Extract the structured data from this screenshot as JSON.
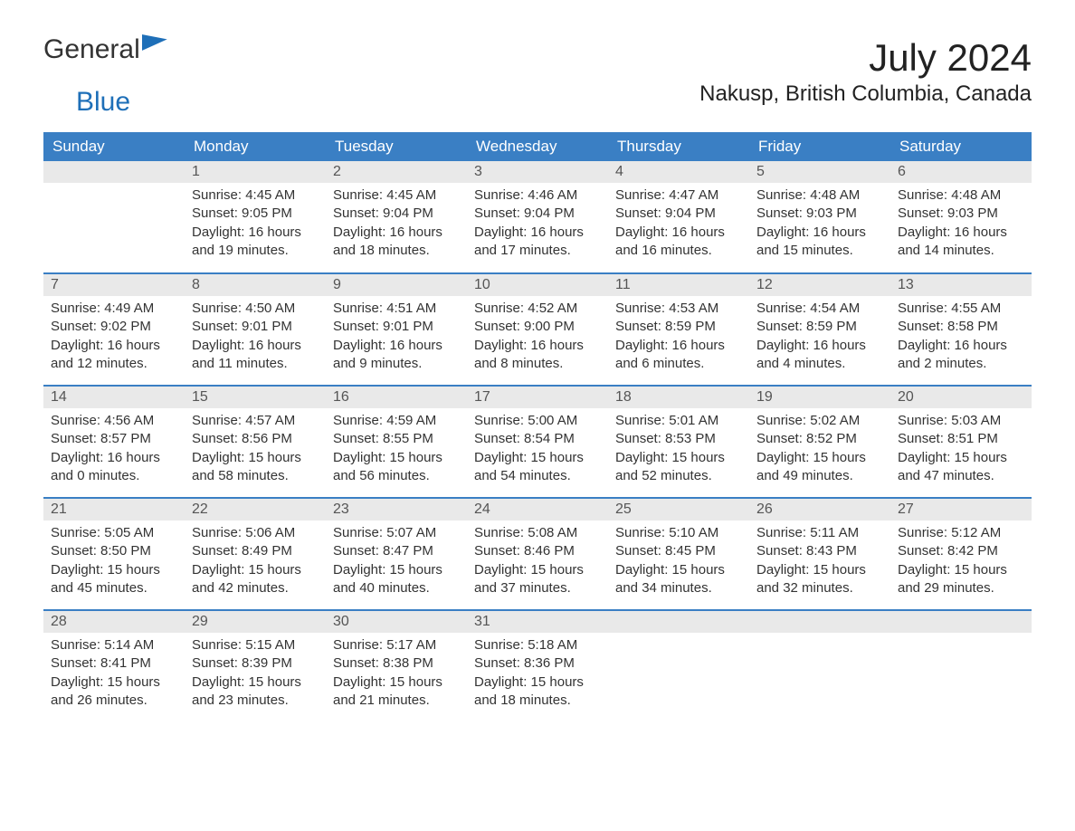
{
  "logo": {
    "text1": "General",
    "text2": "Blue"
  },
  "title": "July 2024",
  "location": "Nakusp, British Columbia, Canada",
  "colors": {
    "header_bg": "#3a7fc4",
    "header_text": "#ffffff",
    "daynum_bg": "#e9e9e9",
    "row_border": "#3a7fc4",
    "body_text": "#333333",
    "logo_blue": "#1e6fb8"
  },
  "fonts": {
    "title_size_pt": 32,
    "location_size_pt": 18,
    "header_size_pt": 13,
    "daynum_size_pt": 12,
    "body_size_pt": 11
  },
  "weekday_headers": [
    "Sunday",
    "Monday",
    "Tuesday",
    "Wednesday",
    "Thursday",
    "Friday",
    "Saturday"
  ],
  "weeks": [
    [
      null,
      {
        "day": "1",
        "sunrise": "Sunrise: 4:45 AM",
        "sunset": "Sunset: 9:05 PM",
        "daylight1": "Daylight: 16 hours",
        "daylight2": "and 19 minutes."
      },
      {
        "day": "2",
        "sunrise": "Sunrise: 4:45 AM",
        "sunset": "Sunset: 9:04 PM",
        "daylight1": "Daylight: 16 hours",
        "daylight2": "and 18 minutes."
      },
      {
        "day": "3",
        "sunrise": "Sunrise: 4:46 AM",
        "sunset": "Sunset: 9:04 PM",
        "daylight1": "Daylight: 16 hours",
        "daylight2": "and 17 minutes."
      },
      {
        "day": "4",
        "sunrise": "Sunrise: 4:47 AM",
        "sunset": "Sunset: 9:04 PM",
        "daylight1": "Daylight: 16 hours",
        "daylight2": "and 16 minutes."
      },
      {
        "day": "5",
        "sunrise": "Sunrise: 4:48 AM",
        "sunset": "Sunset: 9:03 PM",
        "daylight1": "Daylight: 16 hours",
        "daylight2": "and 15 minutes."
      },
      {
        "day": "6",
        "sunrise": "Sunrise: 4:48 AM",
        "sunset": "Sunset: 9:03 PM",
        "daylight1": "Daylight: 16 hours",
        "daylight2": "and 14 minutes."
      }
    ],
    [
      {
        "day": "7",
        "sunrise": "Sunrise: 4:49 AM",
        "sunset": "Sunset: 9:02 PM",
        "daylight1": "Daylight: 16 hours",
        "daylight2": "and 12 minutes."
      },
      {
        "day": "8",
        "sunrise": "Sunrise: 4:50 AM",
        "sunset": "Sunset: 9:01 PM",
        "daylight1": "Daylight: 16 hours",
        "daylight2": "and 11 minutes."
      },
      {
        "day": "9",
        "sunrise": "Sunrise: 4:51 AM",
        "sunset": "Sunset: 9:01 PM",
        "daylight1": "Daylight: 16 hours",
        "daylight2": "and 9 minutes."
      },
      {
        "day": "10",
        "sunrise": "Sunrise: 4:52 AM",
        "sunset": "Sunset: 9:00 PM",
        "daylight1": "Daylight: 16 hours",
        "daylight2": "and 8 minutes."
      },
      {
        "day": "11",
        "sunrise": "Sunrise: 4:53 AM",
        "sunset": "Sunset: 8:59 PM",
        "daylight1": "Daylight: 16 hours",
        "daylight2": "and 6 minutes."
      },
      {
        "day": "12",
        "sunrise": "Sunrise: 4:54 AM",
        "sunset": "Sunset: 8:59 PM",
        "daylight1": "Daylight: 16 hours",
        "daylight2": "and 4 minutes."
      },
      {
        "day": "13",
        "sunrise": "Sunrise: 4:55 AM",
        "sunset": "Sunset: 8:58 PM",
        "daylight1": "Daylight: 16 hours",
        "daylight2": "and 2 minutes."
      }
    ],
    [
      {
        "day": "14",
        "sunrise": "Sunrise: 4:56 AM",
        "sunset": "Sunset: 8:57 PM",
        "daylight1": "Daylight: 16 hours",
        "daylight2": "and 0 minutes."
      },
      {
        "day": "15",
        "sunrise": "Sunrise: 4:57 AM",
        "sunset": "Sunset: 8:56 PM",
        "daylight1": "Daylight: 15 hours",
        "daylight2": "and 58 minutes."
      },
      {
        "day": "16",
        "sunrise": "Sunrise: 4:59 AM",
        "sunset": "Sunset: 8:55 PM",
        "daylight1": "Daylight: 15 hours",
        "daylight2": "and 56 minutes."
      },
      {
        "day": "17",
        "sunrise": "Sunrise: 5:00 AM",
        "sunset": "Sunset: 8:54 PM",
        "daylight1": "Daylight: 15 hours",
        "daylight2": "and 54 minutes."
      },
      {
        "day": "18",
        "sunrise": "Sunrise: 5:01 AM",
        "sunset": "Sunset: 8:53 PM",
        "daylight1": "Daylight: 15 hours",
        "daylight2": "and 52 minutes."
      },
      {
        "day": "19",
        "sunrise": "Sunrise: 5:02 AM",
        "sunset": "Sunset: 8:52 PM",
        "daylight1": "Daylight: 15 hours",
        "daylight2": "and 49 minutes."
      },
      {
        "day": "20",
        "sunrise": "Sunrise: 5:03 AM",
        "sunset": "Sunset: 8:51 PM",
        "daylight1": "Daylight: 15 hours",
        "daylight2": "and 47 minutes."
      }
    ],
    [
      {
        "day": "21",
        "sunrise": "Sunrise: 5:05 AM",
        "sunset": "Sunset: 8:50 PM",
        "daylight1": "Daylight: 15 hours",
        "daylight2": "and 45 minutes."
      },
      {
        "day": "22",
        "sunrise": "Sunrise: 5:06 AM",
        "sunset": "Sunset: 8:49 PM",
        "daylight1": "Daylight: 15 hours",
        "daylight2": "and 42 minutes."
      },
      {
        "day": "23",
        "sunrise": "Sunrise: 5:07 AM",
        "sunset": "Sunset: 8:47 PM",
        "daylight1": "Daylight: 15 hours",
        "daylight2": "and 40 minutes."
      },
      {
        "day": "24",
        "sunrise": "Sunrise: 5:08 AM",
        "sunset": "Sunset: 8:46 PM",
        "daylight1": "Daylight: 15 hours",
        "daylight2": "and 37 minutes."
      },
      {
        "day": "25",
        "sunrise": "Sunrise: 5:10 AM",
        "sunset": "Sunset: 8:45 PM",
        "daylight1": "Daylight: 15 hours",
        "daylight2": "and 34 minutes."
      },
      {
        "day": "26",
        "sunrise": "Sunrise: 5:11 AM",
        "sunset": "Sunset: 8:43 PM",
        "daylight1": "Daylight: 15 hours",
        "daylight2": "and 32 minutes."
      },
      {
        "day": "27",
        "sunrise": "Sunrise: 5:12 AM",
        "sunset": "Sunset: 8:42 PM",
        "daylight1": "Daylight: 15 hours",
        "daylight2": "and 29 minutes."
      }
    ],
    [
      {
        "day": "28",
        "sunrise": "Sunrise: 5:14 AM",
        "sunset": "Sunset: 8:41 PM",
        "daylight1": "Daylight: 15 hours",
        "daylight2": "and 26 minutes."
      },
      {
        "day": "29",
        "sunrise": "Sunrise: 5:15 AM",
        "sunset": "Sunset: 8:39 PM",
        "daylight1": "Daylight: 15 hours",
        "daylight2": "and 23 minutes."
      },
      {
        "day": "30",
        "sunrise": "Sunrise: 5:17 AM",
        "sunset": "Sunset: 8:38 PM",
        "daylight1": "Daylight: 15 hours",
        "daylight2": "and 21 minutes."
      },
      {
        "day": "31",
        "sunrise": "Sunrise: 5:18 AM",
        "sunset": "Sunset: 8:36 PM",
        "daylight1": "Daylight: 15 hours",
        "daylight2": "and 18 minutes."
      },
      null,
      null,
      null
    ]
  ]
}
